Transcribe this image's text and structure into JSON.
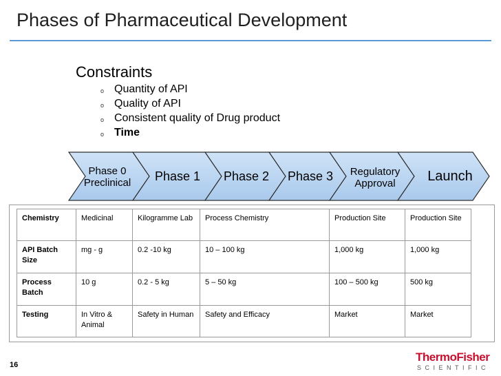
{
  "title": "Phases of Pharmaceutical Development",
  "constraints": {
    "heading": "Constraints",
    "items": [
      {
        "text": "Quantity of API",
        "bold": false
      },
      {
        "text": "Quality of API",
        "bold": false
      },
      {
        "text": "Consistent quality of Drug product",
        "bold": false
      },
      {
        "text": "Time",
        "bold": true
      }
    ],
    "bullet_glyph": "o"
  },
  "phases": [
    {
      "line1": "Phase 0",
      "line2": "Preclinical"
    },
    {
      "line1": "Phase 1",
      "line2": ""
    },
    {
      "line1": "Phase 2",
      "line2": ""
    },
    {
      "line1": "Phase 3",
      "line2": ""
    },
    {
      "line1": "Regulatory",
      "line2": "Approval"
    },
    {
      "line1": "Launch",
      "line2": ""
    }
  ],
  "colors": {
    "chevron_fill_top": "#cfe3f7",
    "chevron_fill_bottom": "#a9c9ec",
    "chevron_stroke": "#2e2e2e",
    "accent": "#5b9bd5",
    "logo_red": "#c8102e"
  },
  "table": {
    "rows": [
      {
        "cells": [
          "Chemistry",
          "Medicinal",
          "Kilogramme Lab",
          "Process  Chemistry",
          "Production Site",
          "Production Site"
        ]
      },
      {
        "cells": [
          "API Batch Size",
          "mg - g",
          "0.2 -10 kg",
          "10 – 100 kg",
          "1,000 kg",
          "1,000 kg"
        ]
      },
      {
        "cells": [
          "Process Batch",
          "10 g",
          "0.2 - 5 kg",
          "5 – 50 kg",
          "100 – 500 kg",
          "500 kg"
        ]
      },
      {
        "cells": [
          "Testing",
          "In Vitro & Animal",
          "Safety in Human",
          "Safety and Efficacy",
          "Market",
          "Market"
        ]
      }
    ]
  },
  "footer": {
    "page_number": "16",
    "logo_line1_a": "Thermo",
    "logo_line1_b": "Fisher",
    "logo_line2": "SCIENTIFIC"
  }
}
